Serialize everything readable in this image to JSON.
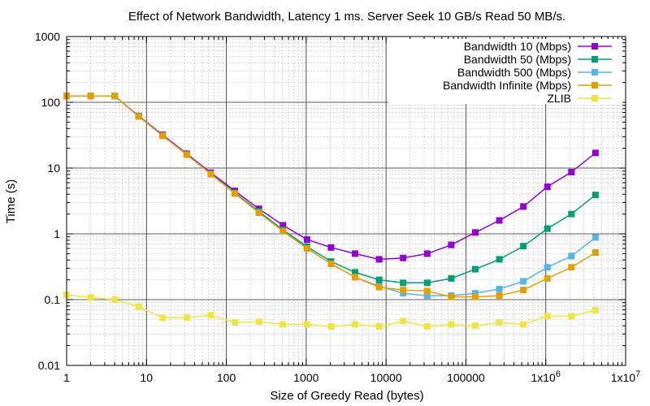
{
  "chart_data": {
    "type": "line",
    "title": "Effect of Network Bandwidth, Latency 1 ms. Server Seek 10 GB/s Read 50 MB/s.",
    "xlabel": "Size of Greedy Read (bytes)",
    "ylabel": "Time (s)",
    "xscale": "log",
    "yscale": "log",
    "xlim": [
      1,
      10000000
    ],
    "ylim": [
      0.01,
      1000
    ],
    "grid": true,
    "legend_position": "top-right",
    "x_tick_labels": [
      "1",
      "10",
      "100",
      "1000",
      "10000",
      "100000",
      "1x10^6",
      "1x10^7"
    ],
    "y_tick_labels": [
      "0.01",
      "0.1",
      "1",
      "10",
      "100",
      "1000"
    ],
    "x": [
      1,
      2,
      4,
      8,
      16,
      32,
      64,
      128,
      256,
      512,
      1024,
      2048,
      4096,
      8192,
      16384,
      32768,
      65536,
      131072,
      262144,
      524288,
      1048576,
      2097152,
      4194304
    ],
    "series": [
      {
        "name": "Bandwidth 10 (Mbps)",
        "color": "#9400d3",
        "marker": "square",
        "values": [
          125,
          125,
          125,
          62,
          32,
          16.5,
          8.5,
          4.5,
          2.4,
          1.35,
          0.82,
          0.62,
          0.5,
          0.41,
          0.43,
          0.5,
          0.68,
          1.05,
          1.6,
          2.6,
          5.2,
          8.7,
          17
        ]
      },
      {
        "name": "Bandwidth 50 (Mbps)",
        "color": "#009e73",
        "marker": "square",
        "values": [
          125,
          125,
          125,
          61,
          31,
          16,
          8.2,
          4.2,
          2.2,
          1.15,
          0.64,
          0.38,
          0.26,
          0.2,
          0.18,
          0.18,
          0.21,
          0.29,
          0.41,
          0.65,
          1.2,
          2.0,
          3.9
        ]
      },
      {
        "name": "Bandwidth 500 (Mbps)",
        "color": "#56b4e9",
        "marker": "square",
        "values": [
          125,
          125,
          125,
          61,
          31,
          16,
          8.1,
          4.1,
          2.1,
          1.1,
          0.6,
          0.35,
          0.22,
          0.16,
          0.125,
          0.115,
          0.115,
          0.125,
          0.145,
          0.19,
          0.31,
          0.46,
          0.88
        ]
      },
      {
        "name": "Bandwidth Infinite (Mbps)",
        "color": "#e69f00",
        "marker": "square",
        "values": [
          125,
          125,
          125,
          61,
          31,
          16,
          8.1,
          4.1,
          2.1,
          1.1,
          0.6,
          0.35,
          0.22,
          0.155,
          0.14,
          0.135,
          0.11,
          0.11,
          0.115,
          0.14,
          0.21,
          0.31,
          0.52
        ]
      },
      {
        "name": "ZLIB",
        "color": "#f0e442",
        "marker": "square",
        "values": [
          0.118,
          0.108,
          0.1,
          0.078,
          0.053,
          0.053,
          0.058,
          0.045,
          0.046,
          0.042,
          0.042,
          0.039,
          0.042,
          0.039,
          0.047,
          0.039,
          0.042,
          0.04,
          0.045,
          0.042,
          0.056,
          0.056,
          0.069
        ]
      }
    ]
  }
}
